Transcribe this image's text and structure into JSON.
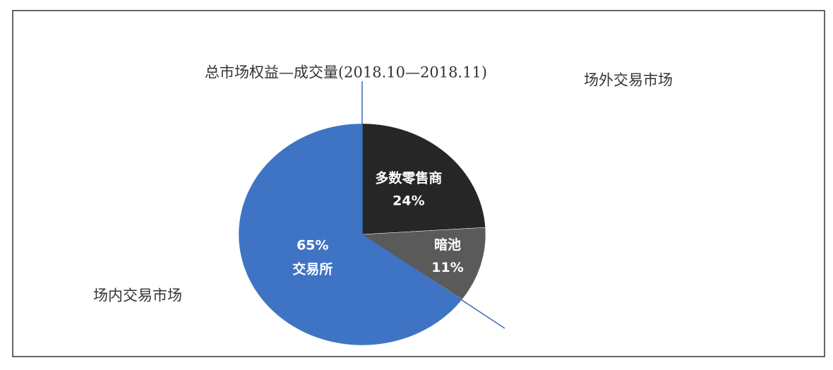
{
  "chart_data": {
    "type": "pie",
    "title": "总市场权益—成交量(2018.10—2018.11)",
    "annotations": [
      "场外交易市场",
      "场内交易市场"
    ],
    "categories": [
      "多数零售商",
      "暗池",
      "交易所"
    ],
    "values": [
      24,
      11,
      65
    ],
    "value_labels": [
      "24%",
      "11%",
      "65%"
    ],
    "colors": [
      "#262626",
      "#5a5a5a",
      "#3f74c4"
    ]
  }
}
